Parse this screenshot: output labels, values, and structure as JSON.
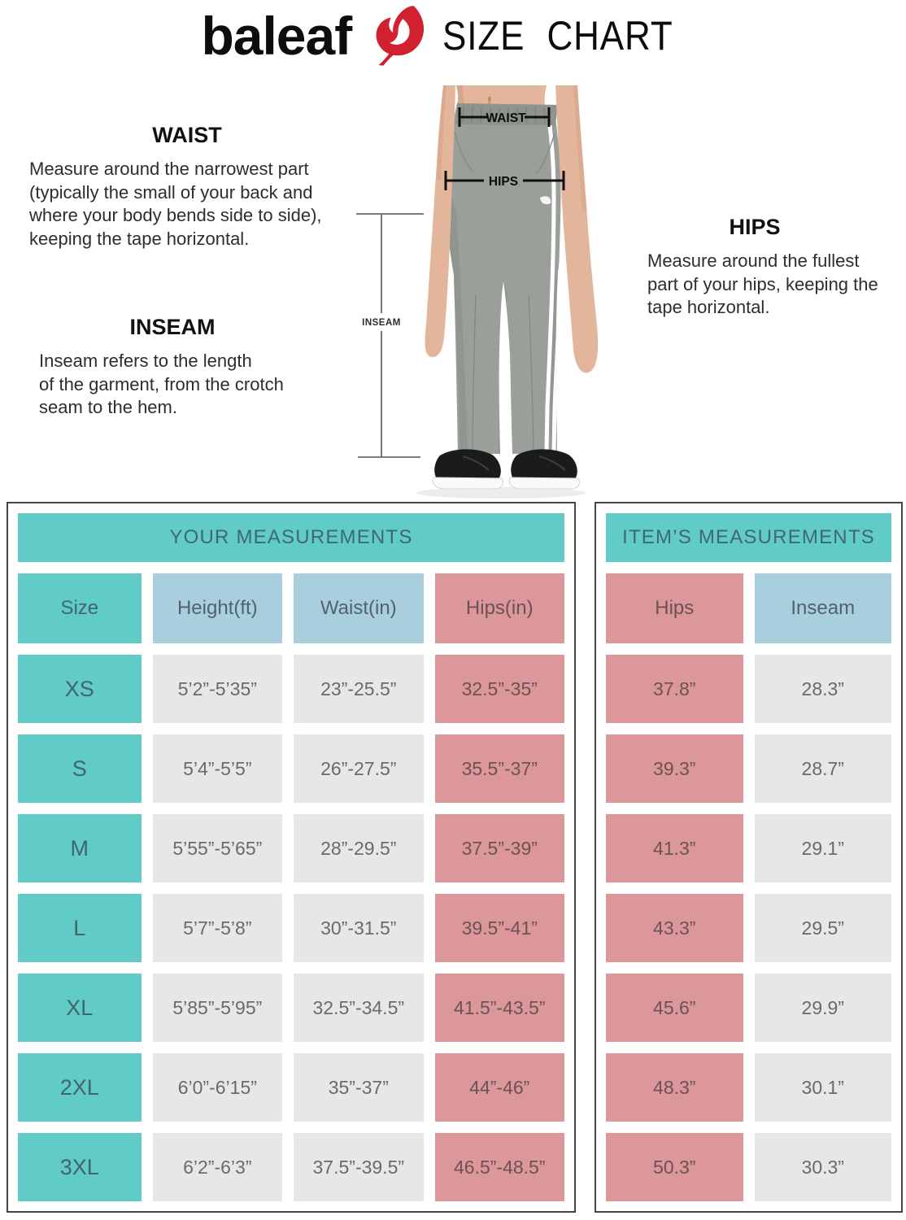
{
  "header": {
    "brand": "baleaf",
    "title": "SIZE CHART"
  },
  "palette": {
    "brand_red": "#d1202f",
    "teal": "#60cbc7",
    "light_blue": "#a9cfdf",
    "pink": "#dc979a",
    "cell_gray": "#e7e7e7",
    "pants_gray": "#9b9f9a"
  },
  "descriptions": {
    "waist": {
      "title": "WAIST",
      "body": "Measure around the narrowest part\n(typically the small of your back and\nwhere your body bends side to side),\nkeeping the tape horizontal."
    },
    "inseam": {
      "title": "INSEAM",
      "body": "Inseam refers to the length\nof the garment, from the crotch\nseam to the hem."
    },
    "hips": {
      "title": "HIPS",
      "body": "Measure around the fullest\npart of your hips, keeping the\ntape horizontal."
    }
  },
  "figure": {
    "annotations": {
      "waist": "WAIST",
      "hips": "HIPS",
      "inseam": "INSEAM"
    }
  },
  "your_measurements": {
    "title": "YOUR MEASUREMENTS",
    "columns": [
      "Size",
      "Height(ft)",
      "Waist(in)",
      "Hips(in)"
    ],
    "rows": [
      [
        "XS",
        "5’2”-5’35”",
        "23”-25.5”",
        "32.5”-35”"
      ],
      [
        "S",
        "5’4”-5’5”",
        "26”-27.5”",
        "35.5”-37”"
      ],
      [
        "M",
        "5’55”-5’65”",
        "28”-29.5”",
        "37.5”-39”"
      ],
      [
        "L",
        "5’7”-5’8”",
        "30”-31.5”",
        "39.5”-41”"
      ],
      [
        "XL",
        "5’85”-5’95”",
        "32.5”-34.5”",
        "41.5”-43.5”"
      ],
      [
        "2XL",
        "6’0”-6’15”",
        "35”-37”",
        "44”-46”"
      ],
      [
        "3XL",
        "6’2”-6’3”",
        "37.5”-39.5”",
        "46.5”-48.5”"
      ]
    ]
  },
  "item_measurements": {
    "title": "ITEM’S MEASUREMENTS",
    "columns": [
      "Hips",
      "Inseam"
    ],
    "rows": [
      [
        "37.8”",
        "28.3”"
      ],
      [
        "39.3”",
        "28.7”"
      ],
      [
        "41.3”",
        "29.1”"
      ],
      [
        "43.3”",
        "29.5”"
      ],
      [
        "45.6”",
        "29.9”"
      ],
      [
        "48.3”",
        "30.1”"
      ],
      [
        "50.3”",
        "30.3”"
      ]
    ]
  }
}
